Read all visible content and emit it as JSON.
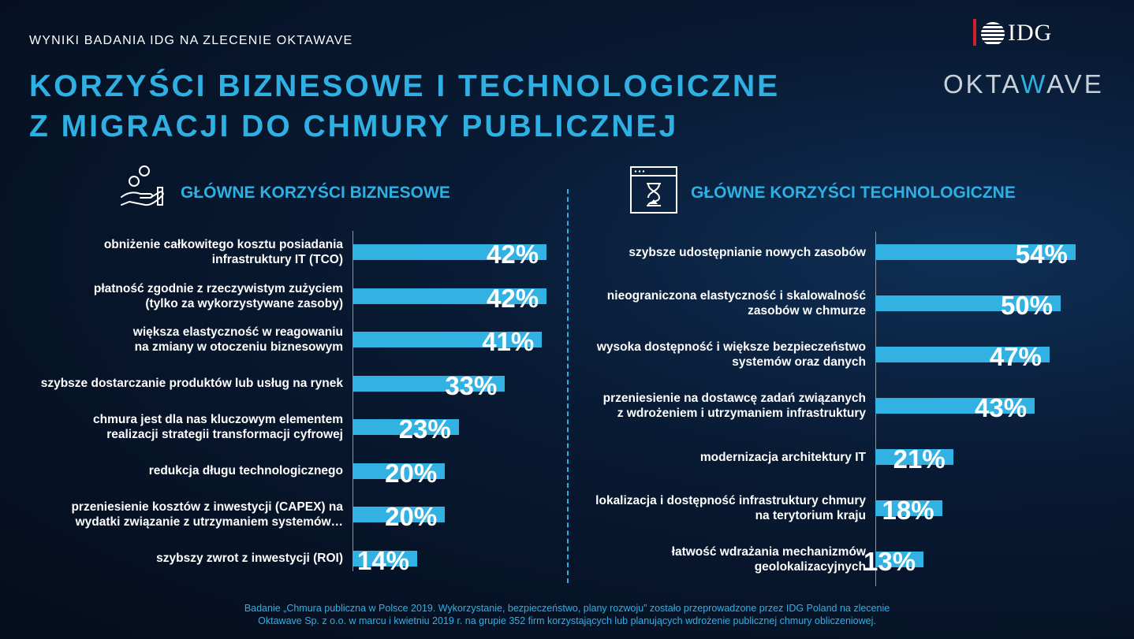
{
  "header": {
    "subtitle": "WYNIKI BADANIA IDG NA ZLECENIE OKTAWAVE",
    "title_line1": "KORZYŚCI BIZNESOWE I TECHNOLOGICZNE",
    "title_line2": "Z MIGRACJI DO CHMURY PUBLICZNEJ"
  },
  "logos": {
    "idg": "IDG",
    "oktawave_pre": "OKTA",
    "oktawave_accent": "W",
    "oktawave_post": "AVE"
  },
  "colors": {
    "accent": "#2fb0e3",
    "bar": "#32b2e3",
    "idg_red": "#d0202c",
    "background": "#061224"
  },
  "footnote": {
    "line1": "Badanie „Chmura publiczna w Polsce 2019. Wykorzystanie, bezpieczeństwo, plany rozwoju” zostało przeprowadzone przez IDG Poland na zlecenie",
    "line2": "Oktawave Sp. z o.o. w marcu i kwietniu 2019 r. na grupie 352 firm korzystających lub planujących wdrożenie publicznej chmury obliczeniowej."
  },
  "chart_data": [
    {
      "type": "bar",
      "orientation": "horizontal",
      "title": "GŁÓWNE KORZYŚCI BIZNESOWE",
      "icon": "hand-coins-icon",
      "categories": [
        "obniżenie całkowitego kosztu posiadania infrastruktury IT (TCO)",
        "płatność zgodnie z rzeczywistym zużyciem (tylko za wykorzystywane zasoby)",
        "większa elastyczność w reagowaniu na zmiany w otoczeniu biznesowym",
        "szybsze dostarczanie produktów lub usług na rynek",
        "chmura jest dla nas kluczowym elementem realizacji strategii transformacji cyfrowej",
        "redukcja długu technologicznego",
        "przeniesienie kosztów z inwestycji (CAPEX) na wydatki związanie z utrzymaniem systemów…",
        "szybszy zwrot z inwestycji (ROI)"
      ],
      "label_lines": [
        [
          "obniżenie całkowitego kosztu posiadania",
          "infrastruktury IT (TCO)"
        ],
        [
          "płatność zgodnie z rzeczywistym zużyciem",
          "(tylko za wykorzystywane zasoby)"
        ],
        [
          "większa elastyczność w reagowaniu",
          "na zmiany w otoczeniu biznesowym"
        ],
        [
          "szybsze dostarczanie produktów lub usług na rynek"
        ],
        [
          "chmura jest dla nas kluczowym elementem",
          "realizacji strategii transformacji cyfrowej"
        ],
        [
          "redukcja długu technologicznego"
        ],
        [
          "przeniesienie kosztów z inwestycji (CAPEX) na",
          "wydatki związanie z utrzymaniem systemów…"
        ],
        [
          "szybszy zwrot z inwestycji (ROI)"
        ]
      ],
      "values": [
        42,
        42,
        41,
        33,
        23,
        20,
        20,
        14
      ],
      "value_labels": [
        "42%",
        "42%",
        "41%",
        "33%",
        "23%",
        "20%",
        "20%",
        "14%"
      ],
      "xlim": [
        0,
        100
      ],
      "grid": false,
      "legend": "none"
    },
    {
      "type": "bar",
      "orientation": "horizontal",
      "title": "GŁÓWNE KORZYŚCI TECHNOLOGICZNE",
      "icon": "hourglass-window-icon",
      "categories": [
        "szybsze udostępnianie nowych zasobów",
        "nieograniczona elastyczność i skalowalność zasobów w chmurze",
        "wysoka dostępność i większe bezpieczeństwo systemów oraz danych",
        "przeniesienie na dostawcę zadań związanych z wdrożeniem i utrzymaniem infrastruktury",
        "modernizacja architektury IT",
        "lokalizacja i dostępność infrastruktury chmury na terytorium kraju",
        "łatwość wdrażania mechanizmów geolokalizacyjnych"
      ],
      "label_lines": [
        [
          "szybsze udostępnianie nowych zasobów"
        ],
        [
          "nieograniczona elastyczność i skalowalność",
          "zasobów w chmurze"
        ],
        [
          "wysoka dostępność i większe bezpieczeństwo",
          "systemów oraz danych"
        ],
        [
          "przeniesienie na dostawcę zadań związanych",
          "z wdrożeniem i utrzymaniem infrastruktury"
        ],
        [
          "modernizacja architektury IT"
        ],
        [
          "lokalizacja i dostępność infrastruktury chmury",
          "na terytorium kraju"
        ],
        [
          "łatwość wdrażania mechanizmów",
          "geolokalizacyjnych"
        ]
      ],
      "values": [
        54,
        50,
        47,
        43,
        21,
        18,
        13
      ],
      "value_labels": [
        "54%",
        "50%",
        "47%",
        "43%",
        "21%",
        "18%",
        "13%"
      ],
      "xlim": [
        0,
        100
      ],
      "grid": false,
      "legend": "none"
    }
  ]
}
